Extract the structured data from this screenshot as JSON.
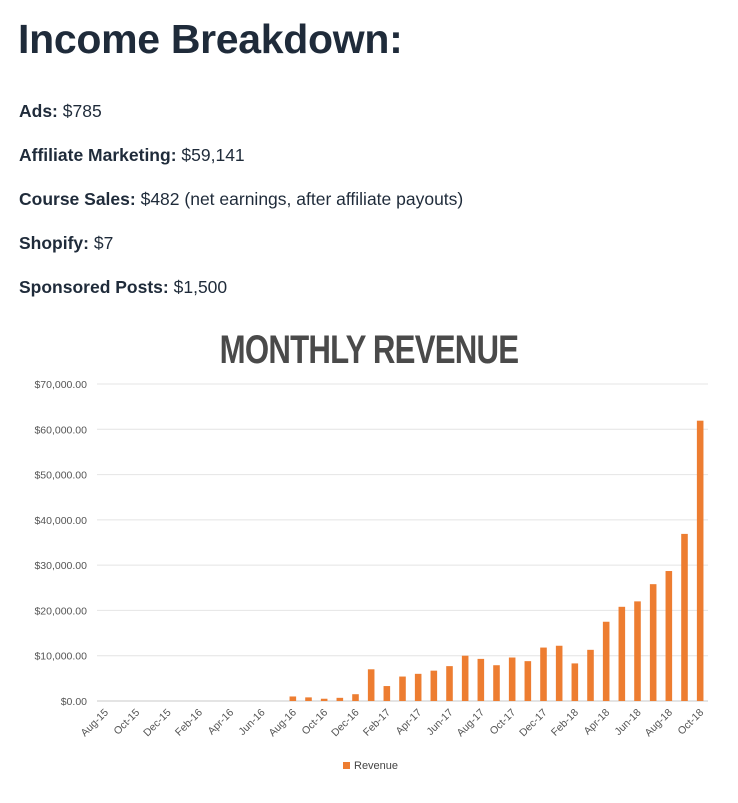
{
  "heading": "Income Breakdown:",
  "income": [
    {
      "label": "Ads:",
      "value": "$785"
    },
    {
      "label": "Affiliate Marketing:",
      "value": "$59,141"
    },
    {
      "label": "Course Sales:",
      "value": "$482 (net earnings, after affiliate payouts)"
    },
    {
      "label": "Shopify:",
      "value": "$7"
    },
    {
      "label": "Sponsored Posts:",
      "value": "$1,500"
    }
  ],
  "chart_data": {
    "type": "bar",
    "title": "MONTHLY REVENUE",
    "categories": [
      "Aug-15",
      "Sep-15",
      "Oct-15",
      "Nov-15",
      "Dec-15",
      "Jan-16",
      "Feb-16",
      "Mar-16",
      "Apr-16",
      "May-16",
      "Jun-16",
      "Jul-16",
      "Aug-16",
      "Sep-16",
      "Oct-16",
      "Nov-16",
      "Dec-16",
      "Jan-17",
      "Feb-17",
      "Mar-17",
      "Apr-17",
      "May-17",
      "Jun-17",
      "Jul-17",
      "Aug-17",
      "Sep-17",
      "Oct-17",
      "Nov-17",
      "Dec-17",
      "Jan-18",
      "Feb-18",
      "Mar-18",
      "Apr-18",
      "May-18",
      "Jun-18",
      "Jul-18",
      "Aug-18",
      "Sep-18",
      "Oct-18"
    ],
    "x_tick_labels": [
      "Aug-15",
      "Oct-15",
      "Dec-15",
      "Feb-16",
      "Apr-16",
      "Jun-16",
      "Aug-16",
      "Oct-16",
      "Dec-16",
      "Feb-17",
      "Apr-17",
      "Jun-17",
      "Aug-17",
      "Oct-17",
      "Dec-17",
      "Feb-18",
      "Apr-18",
      "Jun-18",
      "Aug-18",
      "Oct-18"
    ],
    "series": [
      {
        "name": "Revenue",
        "color": "#ed7d31",
        "values": [
          0,
          0,
          0,
          0,
          0,
          0,
          0,
          0,
          0,
          0,
          0,
          0,
          1000,
          800,
          500,
          700,
          1500,
          7000,
          3300,
          5400,
          6000,
          6700,
          7700,
          10000,
          9300,
          7900,
          9600,
          8800,
          11800,
          12200,
          8300,
          11300,
          17500,
          20800,
          22000,
          25800,
          28700,
          36900,
          61900
        ]
      }
    ],
    "ylim": [
      0,
      70000
    ],
    "y_ticks": [
      "$0.00",
      "$10,000.00",
      "$20,000.00",
      "$30,000.00",
      "$40,000.00",
      "$50,000.00",
      "$60,000.00",
      "$70,000.00"
    ],
    "grid": true,
    "legend": "bottom"
  }
}
